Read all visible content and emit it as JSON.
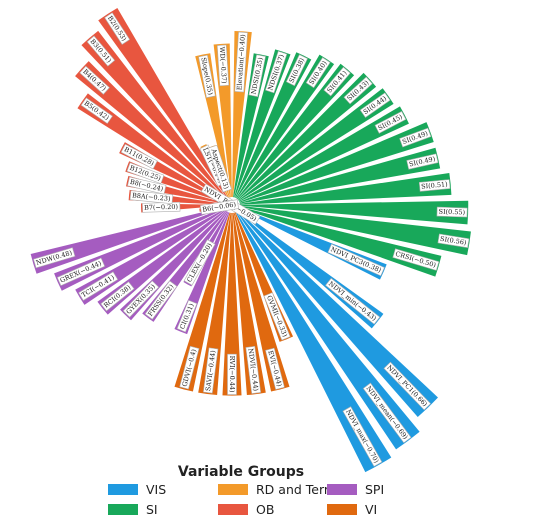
{
  "chart_data": {
    "type": "radial-bar",
    "title": "",
    "legend": {
      "title": "Variable Groups",
      "placement": "bottom",
      "items": [
        {
          "name": "VIS",
          "color": "#1f9ae0"
        },
        {
          "name": "RD and Terrain",
          "color": "#f39a2a"
        },
        {
          "name": "SPI",
          "color": "#a55cc0"
        },
        {
          "name": "SI",
          "color": "#18a85a"
        },
        {
          "name": "OB",
          "color": "#e8563f"
        },
        {
          "name": "VI",
          "color": "#e0690f"
        }
      ]
    },
    "bars": [
      {
        "label": "Elevation(−0.40)",
        "value": 0.4,
        "group": "RD and Terrain"
      },
      {
        "label": "NDSI(0.35)",
        "value": 0.35,
        "group": "SI"
      },
      {
        "label": "NDSI(0.37)",
        "value": 0.37,
        "group": "SI"
      },
      {
        "label": "SI(0.38)",
        "value": 0.38,
        "group": "SI"
      },
      {
        "label": "SI(0.40)",
        "value": 0.4,
        "group": "SI"
      },
      {
        "label": "SI(0.41)",
        "value": 0.41,
        "group": "SI"
      },
      {
        "label": "SI(0.43)",
        "value": 0.43,
        "group": "SI"
      },
      {
        "label": "SI(0.44)",
        "value": 0.44,
        "group": "SI"
      },
      {
        "label": "SI(0.45)",
        "value": 0.45,
        "group": "SI"
      },
      {
        "label": "SI(0.49)",
        "value": 0.49,
        "group": "SI"
      },
      {
        "label": "SI(0.49)",
        "value": 0.49,
        "group": "SI"
      },
      {
        "label": "SI(0.51)",
        "value": 0.51,
        "group": "SI"
      },
      {
        "label": "SI(0.55)",
        "value": 0.55,
        "group": "SI"
      },
      {
        "label": "SI(0.56)",
        "value": 0.56,
        "group": "SI"
      },
      {
        "label": "CRSI(−0.50)",
        "value": 0.5,
        "group": "SI"
      },
      {
        "label": "NDVI_PC3(0.38)",
        "value": 0.38,
        "group": "VIS"
      },
      {
        "label": "NDVI_PC2(−0.05)",
        "value": 0.05,
        "group": "VIS"
      },
      {
        "label": "NDVI_min(−0.43)",
        "value": 0.43,
        "group": "VIS"
      },
      {
        "label": "NDVI_PC1(0.66)",
        "value": 0.66,
        "group": "VIS"
      },
      {
        "label": "NDVI_mean(−0.69)",
        "value": 0.69,
        "group": "VIS"
      },
      {
        "label": "NDVI_max(−0.70)",
        "value": 0.7,
        "group": "VIS"
      },
      {
        "label": "GVMI(−0.33)",
        "value": 0.33,
        "group": "VI"
      },
      {
        "label": "EVI(−0.44)",
        "value": 0.44,
        "group": "VI"
      },
      {
        "label": "NDVI(−0.44)",
        "value": 0.44,
        "group": "VI"
      },
      {
        "label": "RVI(−0.44)",
        "value": 0.44,
        "group": "VI"
      },
      {
        "label": "SAVI(−0.44)",
        "value": 0.44,
        "group": "VI"
      },
      {
        "label": "GDVI(−0.4)",
        "value": 0.44,
        "group": "VI"
      },
      {
        "label": "CI(0.31)",
        "value": 0.31,
        "group": "SPI"
      },
      {
        "label": "CLEX(−0.20)",
        "value": 0.2,
        "group": "SPI"
      },
      {
        "label": "FRSS(0.32)",
        "value": 0.32,
        "group": "SPI"
      },
      {
        "label": "GYEX(0.35)",
        "value": 0.35,
        "group": "SPI"
      },
      {
        "label": "RCI(0.38)",
        "value": 0.38,
        "group": "SPI"
      },
      {
        "label": "TCI(−0.41)",
        "value": 0.41,
        "group": "SPI"
      },
      {
        "label": "GREX(−0.44)",
        "value": 0.44,
        "group": "SPI"
      },
      {
        "label": "NDW(0.48)",
        "value": 0.48,
        "group": "SPI"
      },
      {
        "label": "B6(−0.06)",
        "value": 0.06,
        "group": "OB"
      },
      {
        "label": "B7(−0.20)",
        "value": 0.2,
        "group": "OB"
      },
      {
        "label": "B8A(−0.23)",
        "value": 0.23,
        "group": "OB"
      },
      {
        "label": "B8(−0.24)",
        "value": 0.24,
        "group": "OB"
      },
      {
        "label": "B12(0.25)",
        "value": 0.25,
        "group": "OB"
      },
      {
        "label": "B11(0.28)",
        "value": 0.28,
        "group": "OB"
      },
      {
        "label": "B5(0.42)",
        "value": 0.42,
        "group": "OB"
      },
      {
        "label": "B4(0.47)",
        "value": 0.47,
        "group": "OB"
      },
      {
        "label": "B3(0.51)",
        "value": 0.51,
        "group": "OB"
      },
      {
        "label": "B2(0.53)",
        "value": 0.53,
        "group": "OB"
      },
      {
        "label": "LST(−0.14)",
        "value": 0.14,
        "group": "RD and Terrain"
      },
      {
        "label": "Aspect(0.13)",
        "value": 0.13,
        "group": "RD and Terrain"
      },
      {
        "label": "Slope(0.35)",
        "value": 0.35,
        "group": "RD and Terrain"
      },
      {
        "label": "WD(−0.37)",
        "value": 0.37,
        "group": "RD and Terrain"
      }
    ]
  }
}
